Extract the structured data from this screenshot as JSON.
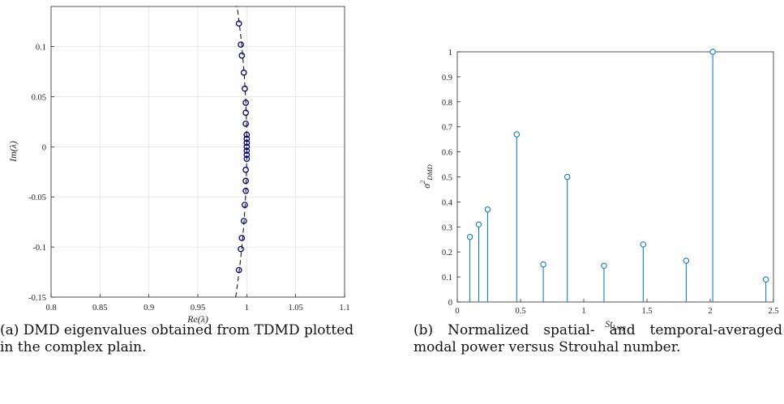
{
  "captions": {
    "a": "(a) DMD eigenvalues obtained from TDMD plotted in the complex plain.",
    "b": "(b) Normalized spatial- and temporal-averaged modal power versus Strouhal number."
  },
  "colors": {
    "markers_a": "#00006e",
    "dashed_line": "#000000",
    "stems_b": "#0072bd",
    "grid": "#e3e3e3"
  },
  "chart_data": [
    {
      "type": "scatter",
      "xlabel": "Re(λ)",
      "ylabel": "Im(λ)",
      "xlim": [
        0.8,
        1.1
      ],
      "ylim": [
        -0.15,
        0.14
      ],
      "x_ticks": [
        "0.8",
        "0.85",
        "0.9",
        "0.95",
        "1",
        "1.05",
        "1.1"
      ],
      "y_ticks": [
        "-0.15",
        "-0.1",
        "-0.05",
        "0",
        "0.05",
        "0.1"
      ],
      "grid": true,
      "marker": "open-circle",
      "points": [
        [
          0.992,
          0.123
        ],
        [
          0.994,
          0.102
        ],
        [
          0.995,
          0.091
        ],
        [
          0.997,
          0.074
        ],
        [
          0.998,
          0.058
        ],
        [
          0.999,
          0.044
        ],
        [
          0.999,
          0.034
        ],
        [
          0.999,
          0.023
        ],
        [
          1.0,
          0.012
        ],
        [
          1.0,
          0.008
        ],
        [
          1.0,
          0.004
        ],
        [
          1.0,
          0.0
        ],
        [
          1.0,
          -0.004
        ],
        [
          1.0,
          -0.008
        ],
        [
          1.0,
          -0.012
        ],
        [
          0.999,
          -0.023
        ],
        [
          0.999,
          -0.034
        ],
        [
          0.999,
          -0.044
        ],
        [
          0.998,
          -0.058
        ],
        [
          0.997,
          -0.074
        ],
        [
          0.995,
          -0.091
        ],
        [
          0.994,
          -0.102
        ],
        [
          0.992,
          -0.123
        ]
      ],
      "reference_line": "unit circle (dashed)"
    },
    {
      "type": "stem",
      "xlabel": "St_Lsep",
      "ylabel": "σ²_DMD",
      "xlim": [
        0,
        2.5
      ],
      "ylim": [
        0,
        1
      ],
      "x_ticks": [
        "0",
        "0.5",
        "1",
        "1.5",
        "2",
        "2.5"
      ],
      "y_ticks": [
        "0",
        "0.1",
        "0.2",
        "0.3",
        "0.4",
        "0.5",
        "0.6",
        "0.7",
        "0.8",
        "0.9",
        "1"
      ],
      "grid": false,
      "x": [
        0.1,
        0.17,
        0.24,
        0.47,
        0.68,
        0.87,
        1.16,
        1.47,
        1.81,
        2.02,
        2.44
      ],
      "values": [
        0.26,
        0.31,
        0.37,
        0.67,
        0.15,
        0.5,
        0.145,
        0.23,
        0.165,
        1.0,
        0.09
      ]
    }
  ]
}
